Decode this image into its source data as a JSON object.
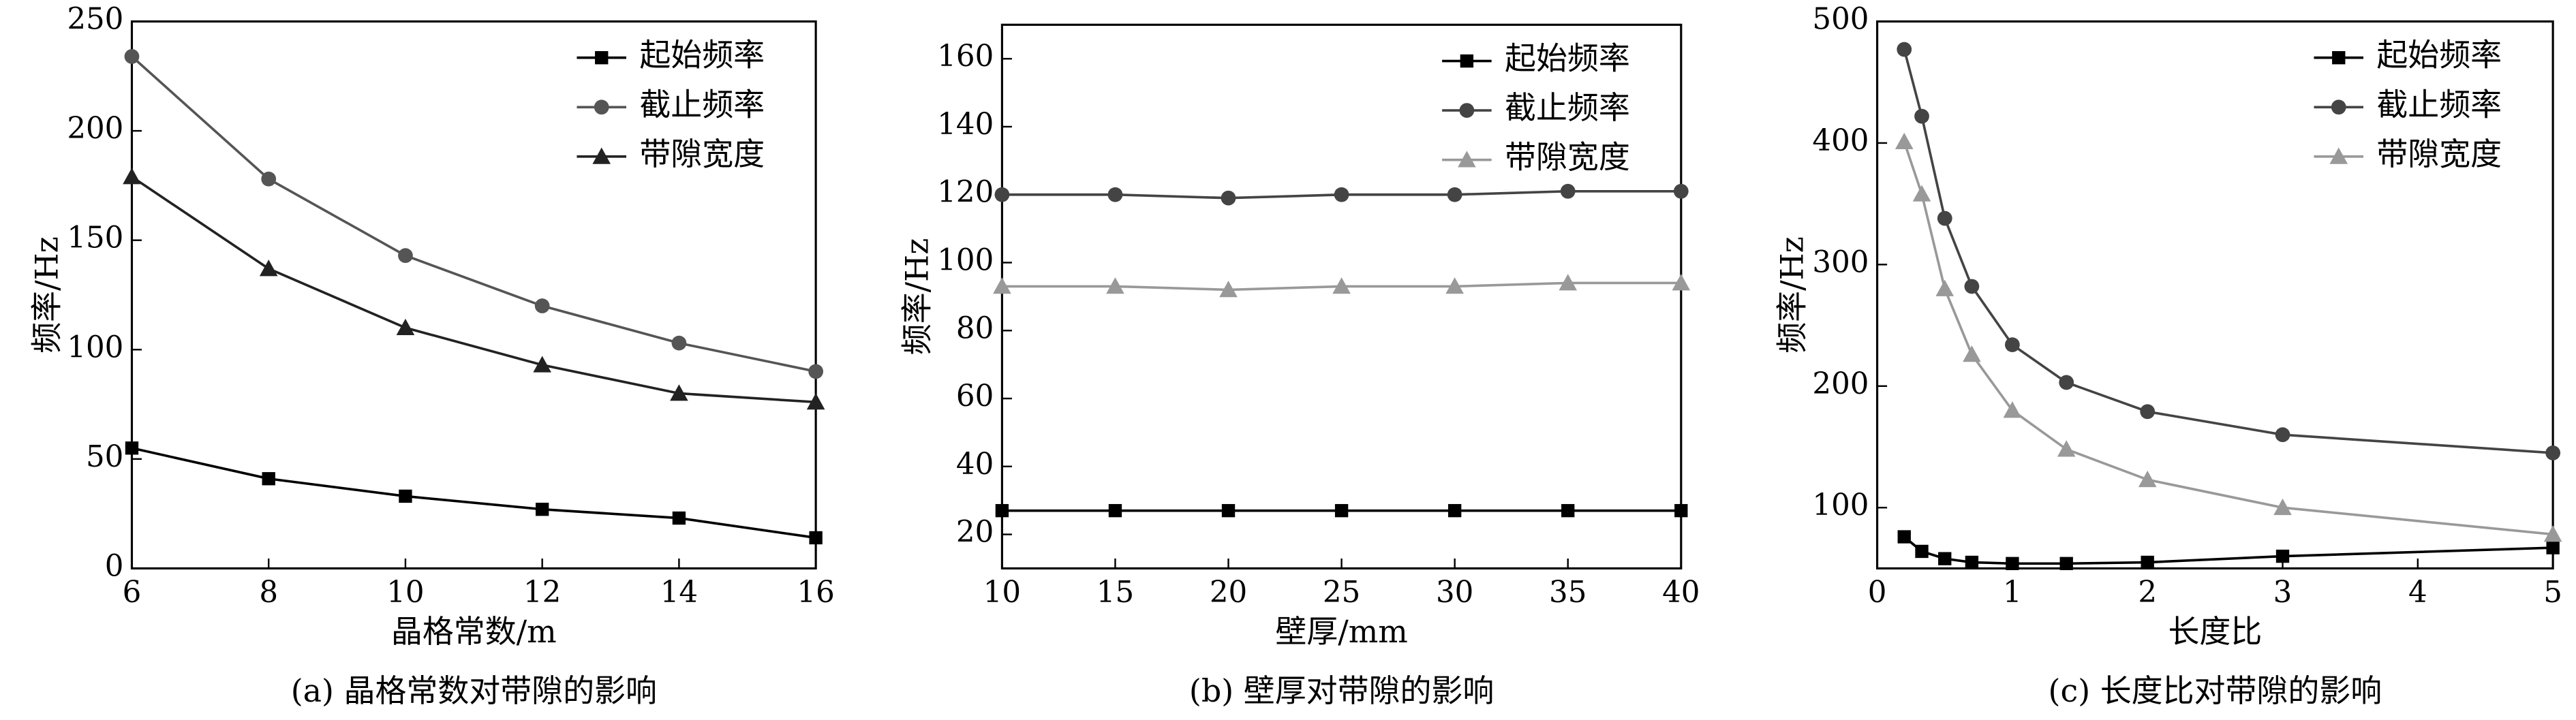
{
  "chart_data": [
    {
      "type": "line",
      "title": "(a) 晶格常数对带隙的影响",
      "x_label": "晶格常数/m",
      "y_label": "频率/Hz",
      "x": [
        6,
        8,
        10,
        12,
        14,
        16
      ],
      "xlim": [
        6,
        16
      ],
      "xticks": [
        6,
        8,
        10,
        12,
        14,
        16
      ],
      "ylim": [
        0,
        250
      ],
      "yticks": [
        0,
        50,
        100,
        150,
        200,
        250
      ],
      "legend": "upper right",
      "series": [
        {
          "name": "起始频率",
          "color": "#000000",
          "marker": "square",
          "values": [
            55,
            41,
            33,
            27,
            23,
            14
          ]
        },
        {
          "name": "截止频率",
          "color": "#555555",
          "marker": "circle",
          "values": [
            234,
            178,
            143,
            120,
            103,
            90
          ]
        },
        {
          "name": "带隙宽度",
          "color": "#222222",
          "marker": "triangle",
          "values": [
            179,
            137,
            110,
            93,
            80,
            76
          ]
        }
      ]
    },
    {
      "type": "line",
      "title": "(b) 壁厚对带隙的影响",
      "x_label": "壁厚/mm",
      "y_label": "频率/Hz",
      "x": [
        10,
        15,
        20,
        25,
        30,
        35,
        40
      ],
      "xlim": [
        10,
        40
      ],
      "xticks": [
        10,
        15,
        20,
        25,
        30,
        35,
        40
      ],
      "ylim": [
        10,
        170
      ],
      "yticks": [
        20,
        40,
        60,
        80,
        100,
        120,
        140,
        160
      ],
      "legend": "upper right",
      "series": [
        {
          "name": "起始频率",
          "color": "#000000",
          "marker": "square",
          "values": [
            27,
            27,
            27,
            27,
            27,
            27,
            27
          ]
        },
        {
          "name": "截止频率",
          "color": "#444444",
          "marker": "circle",
          "values": [
            120,
            120,
            119,
            120,
            120,
            121,
            121
          ]
        },
        {
          "name": "带隙宽度",
          "color": "#999999",
          "marker": "triangle",
          "values": [
            93,
            93,
            92,
            93,
            93,
            94,
            94
          ]
        }
      ]
    },
    {
      "type": "line",
      "title": "(c) 长度比对带隙的影响",
      "x_label": "长度比",
      "y_label": "频率/Hz",
      "x": [
        0.2,
        0.33,
        0.5,
        0.7,
        1,
        1.4,
        2,
        3,
        5
      ],
      "xlim": [
        0,
        5
      ],
      "xticks": [
        0,
        1,
        2,
        3,
        4,
        5
      ],
      "ylim": [
        50,
        500
      ],
      "yticks": [
        100,
        200,
        300,
        400,
        500
      ],
      "legend": "upper right",
      "series": [
        {
          "name": "起始频率",
          "color": "#000000",
          "marker": "square",
          "values": [
            76,
            64,
            58,
            55,
            54,
            54,
            55,
            60,
            67
          ]
        },
        {
          "name": "截止频率",
          "color": "#444444",
          "marker": "circle",
          "values": [
            477,
            422,
            338,
            282,
            234,
            203,
            179,
            160,
            145
          ]
        },
        {
          "name": "带隙宽度",
          "color": "#999999",
          "marker": "triangle",
          "values": [
            401,
            358,
            280,
            226,
            180,
            148,
            123,
            100,
            78
          ]
        }
      ]
    }
  ]
}
